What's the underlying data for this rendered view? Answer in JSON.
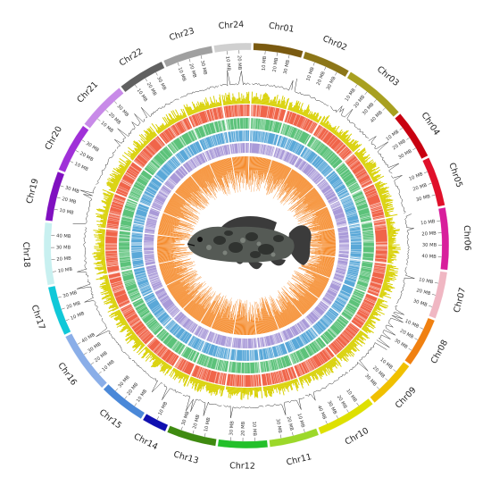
{
  "figure": {
    "center_image": "grouper-fish",
    "tick_unit": "MB",
    "tracks": [
      {
        "name": "track-line",
        "color": "#333333"
      },
      {
        "name": "track-yellow-histogram",
        "color": "#d8d000"
      },
      {
        "name": "track-red-heatmap",
        "color": "#f0654a"
      },
      {
        "name": "track-green-heatmap",
        "color": "#5cc27a"
      },
      {
        "name": "track-blue-heatmap",
        "color": "#5aa8d8"
      },
      {
        "name": "track-purple-heatmap",
        "color": "#a99ad8"
      },
      {
        "name": "track-orange-histogram",
        "color": "#f58a2a"
      }
    ]
  },
  "chromosomes": [
    {
      "name": "Chr01",
      "length": 40,
      "color": "#7a5a10"
    },
    {
      "name": "Chr02",
      "length": 38,
      "color": "#8c7618"
    },
    {
      "name": "Chr03",
      "length": 50,
      "color": "#a8a020"
    },
    {
      "name": "Chr04",
      "length": 40,
      "color": "#c80010"
    },
    {
      "name": "Chr05",
      "length": 40,
      "color": "#e0102a"
    },
    {
      "name": "Chr06",
      "length": 50,
      "color": "#d81e9c"
    },
    {
      "name": "Chr07",
      "length": 38,
      "color": "#f0b7c3"
    },
    {
      "name": "Chr08",
      "length": 40,
      "color": "#f08010"
    },
    {
      "name": "Chr09",
      "length": 40,
      "color": "#f0c000"
    },
    {
      "name": "Chr10",
      "length": 48,
      "color": "#dee000"
    },
    {
      "name": "Chr11",
      "length": 40,
      "color": "#9cd82a"
    },
    {
      "name": "Chr12",
      "length": 40,
      "color": "#23c02a"
    },
    {
      "name": "Chr13",
      "length": 40,
      "color": "#3e8a10"
    },
    {
      "name": "Chr14",
      "length": 20,
      "color": "#1010b0"
    },
    {
      "name": "Chr15",
      "length": 38,
      "color": "#4a88d8"
    },
    {
      "name": "Chr16",
      "length": 50,
      "color": "#8aaee8"
    },
    {
      "name": "Chr17",
      "length": 40,
      "color": "#10c8d8"
    },
    {
      "name": "Chr18",
      "length": 50,
      "color": "#c8f0f0"
    },
    {
      "name": "Chr19",
      "length": 40,
      "color": "#8010c0"
    },
    {
      "name": "Chr20",
      "length": 40,
      "color": "#a030d8"
    },
    {
      "name": "Chr21",
      "length": 40,
      "color": "#c88ae8"
    },
    {
      "name": "Chr22",
      "length": 38,
      "color": "#606060"
    },
    {
      "name": "Chr23",
      "length": 40,
      "color": "#a0a0a0"
    },
    {
      "name": "Chr24",
      "length": 30,
      "color": "#d0d0d0"
    }
  ]
}
